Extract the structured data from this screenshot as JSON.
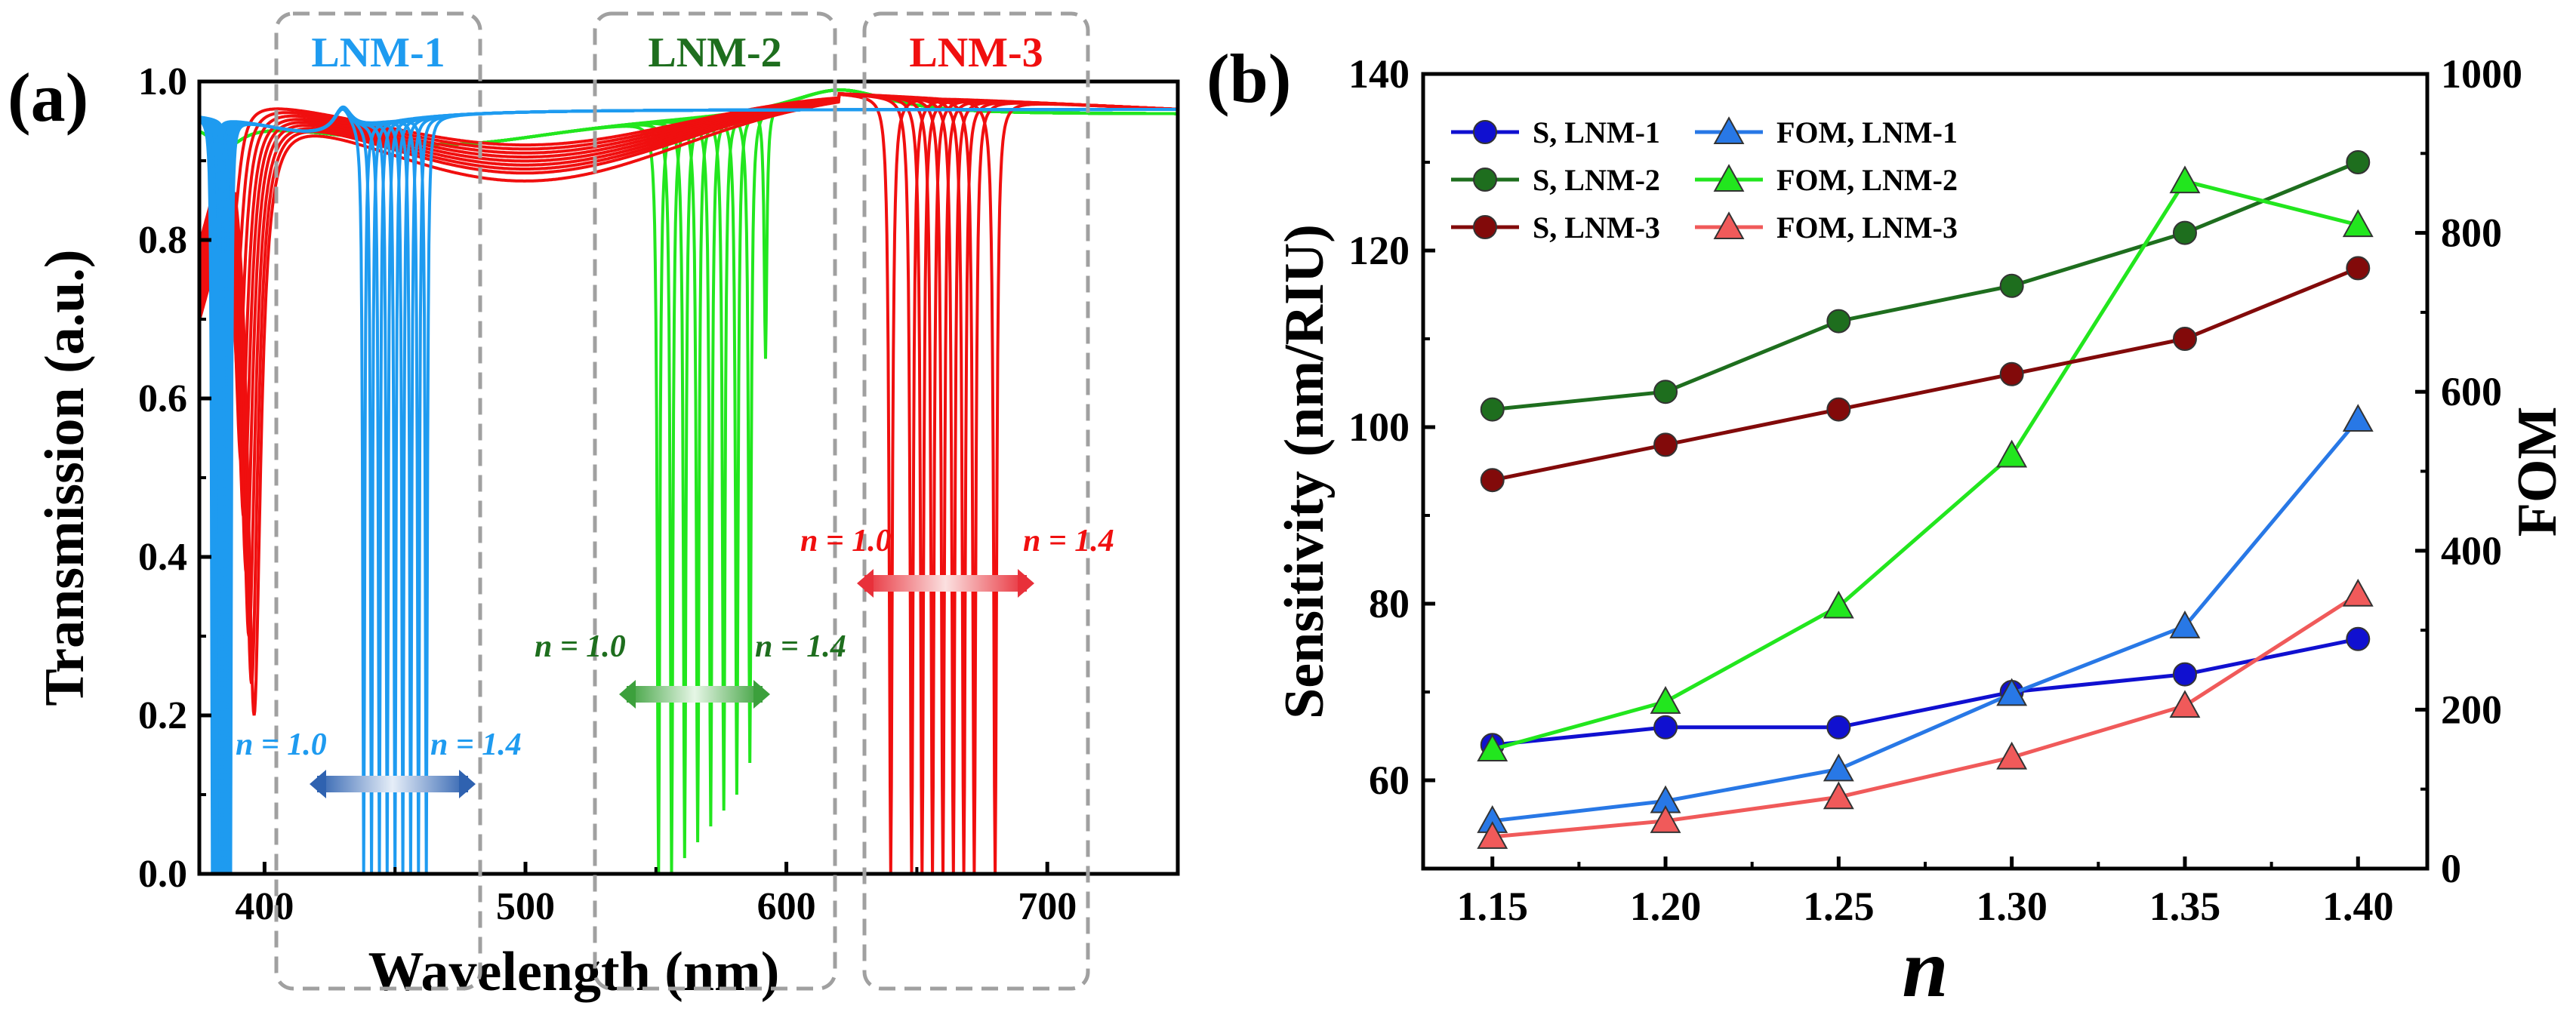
{
  "colors": {
    "blue": "#1E9BF0",
    "green": "#22E61E",
    "red": "#F00F0F",
    "darkgreen": "#1E6E1E",
    "darkred": "#820A0A",
    "navy": "#1010D0",
    "lightblue": "#2878E6",
    "salmon": "#F05A5A",
    "gray": "#A0A0A0",
    "black": "#000000"
  },
  "panel_a": {
    "label": "(a)",
    "boxes": [
      {
        "label": "LNM-1",
        "color_key": "blue"
      },
      {
        "label": "LNM-2",
        "color_key": "darkgreen"
      },
      {
        "label": "LNM-3",
        "color_key": "red"
      }
    ],
    "annotations": [
      {
        "n_start": "n = 1.0",
        "n_end": "n = 1.4",
        "color_key": "blue"
      },
      {
        "n_start": "n = 1.0",
        "n_end": "n = 1.4",
        "color_key": "darkgreen"
      },
      {
        "n_start": "n = 1.0",
        "n_end": "n = 1.4",
        "color_key": "red"
      }
    ]
  },
  "panel_b": {
    "label": "(b)"
  },
  "chart_data": [
    {
      "type": "line",
      "title": "",
      "xlabel": "Wavelength (nm)",
      "ylabel": "Transmission (a.u.)",
      "xlim": [
        375,
        750
      ],
      "ylim": [
        0.0,
        1.0
      ],
      "x_ticks": [
        400,
        500,
        600,
        700
      ],
      "x_tick_labels": [
        "400",
        "500",
        "600",
        "700"
      ],
      "y_ticks": [
        0.0,
        0.2,
        0.4,
        0.6,
        0.8,
        1.0
      ],
      "y_tick_labels": [
        "0.0",
        "0.2",
        "0.4",
        "0.6",
        "0.8",
        "1.0"
      ],
      "refractive_index_steps": 9,
      "series": [
        {
          "name": "LNM-1",
          "color_key": "blue",
          "resonance_nm": [
            438,
            441,
            444,
            447,
            450,
            453,
            456,
            459,
            462
          ],
          "resonance_min": [
            0.0,
            0.0,
            0.0,
            0.0,
            0.0,
            0.0,
            0.0,
            0.0,
            0.0
          ],
          "edge_dip_nm": [
            380,
            381,
            382,
            383,
            383,
            384,
            385,
            386,
            387
          ],
          "baseline": 0.965
        },
        {
          "name": "LNM-2",
          "color_key": "green",
          "resonance_nm": [
            551,
            556,
            561,
            566,
            571,
            576,
            581,
            586,
            592
          ],
          "resonance_min": [
            0.0,
            0.0,
            0.02,
            0.04,
            0.06,
            0.08,
            0.1,
            0.14,
            0.65
          ],
          "baseline": 0.96
        },
        {
          "name": "LNM-3",
          "color_key": "red",
          "resonance_nm": [
            640,
            648,
            652,
            656,
            660,
            664,
            668,
            672,
            680
          ],
          "resonance_min": [
            0.0,
            0.0,
            0.0,
            0.0,
            0.0,
            0.0,
            0.0,
            0.0,
            0.0
          ],
          "edge_dip_nm": [
            388,
            389,
            390,
            391,
            392,
            393,
            394,
            395,
            396
          ],
          "edge_dip_min": [
            0.82,
            0.72,
            0.62,
            0.52,
            0.45,
            0.38,
            0.3,
            0.24,
            0.2
          ],
          "broad_dip_center_nm": 500,
          "broad_dip_min": [
            0.92,
            0.915,
            0.91,
            0.905,
            0.9,
            0.895,
            0.89,
            0.885,
            0.875
          ],
          "baseline": 0.99
        }
      ]
    },
    {
      "type": "line",
      "title": "",
      "xlabel": "n",
      "ylabel": "Sensitivity (nm/RIU)",
      "y2label": "FOM",
      "x": [
        1.15,
        1.2,
        1.25,
        1.3,
        1.35,
        1.4
      ],
      "x_tick_labels": [
        "1.15",
        "1.20",
        "1.25",
        "1.30",
        "1.35",
        "1.40"
      ],
      "xlim": [
        1.13,
        1.42
      ],
      "ylim": [
        50,
        140
      ],
      "y_ticks": [
        60,
        80,
        100,
        120,
        140
      ],
      "y_tick_labels": [
        "60",
        "80",
        "100",
        "120",
        "140"
      ],
      "y2lim": [
        0,
        1000
      ],
      "y2_ticks": [
        0,
        200,
        400,
        600,
        800,
        1000
      ],
      "y2_tick_labels": [
        "0",
        "200",
        "400",
        "600",
        "800",
        "1000"
      ],
      "legend_position": "top-left",
      "series": [
        {
          "name": "S, LNM-1",
          "axis": "left",
          "marker": "circle",
          "color_key": "navy",
          "values": [
            64,
            66,
            66,
            70,
            72,
            76
          ]
        },
        {
          "name": "FOM, LNM-1",
          "axis": "right",
          "marker": "triangle",
          "color_key": "lightblue",
          "values": [
            60,
            85,
            125,
            220,
            305,
            565
          ]
        },
        {
          "name": "S, LNM-2",
          "axis": "left",
          "marker": "circle",
          "color_key": "darkgreen",
          "values": [
            102,
            104,
            112,
            116,
            122,
            130
          ]
        },
        {
          "name": "FOM, LNM-2",
          "axis": "right",
          "marker": "triangle",
          "color_key": "green",
          "values": [
            150,
            210,
            330,
            520,
            865,
            810
          ]
        },
        {
          "name": "S, LNM-3",
          "axis": "left",
          "marker": "circle",
          "color_key": "darkred",
          "values": [
            94,
            98,
            102,
            106,
            110,
            118
          ]
        },
        {
          "name": "FOM, LNM-3",
          "axis": "right",
          "marker": "triangle",
          "color_key": "salmon",
          "values": [
            40,
            60,
            90,
            140,
            205,
            345
          ]
        }
      ]
    }
  ]
}
